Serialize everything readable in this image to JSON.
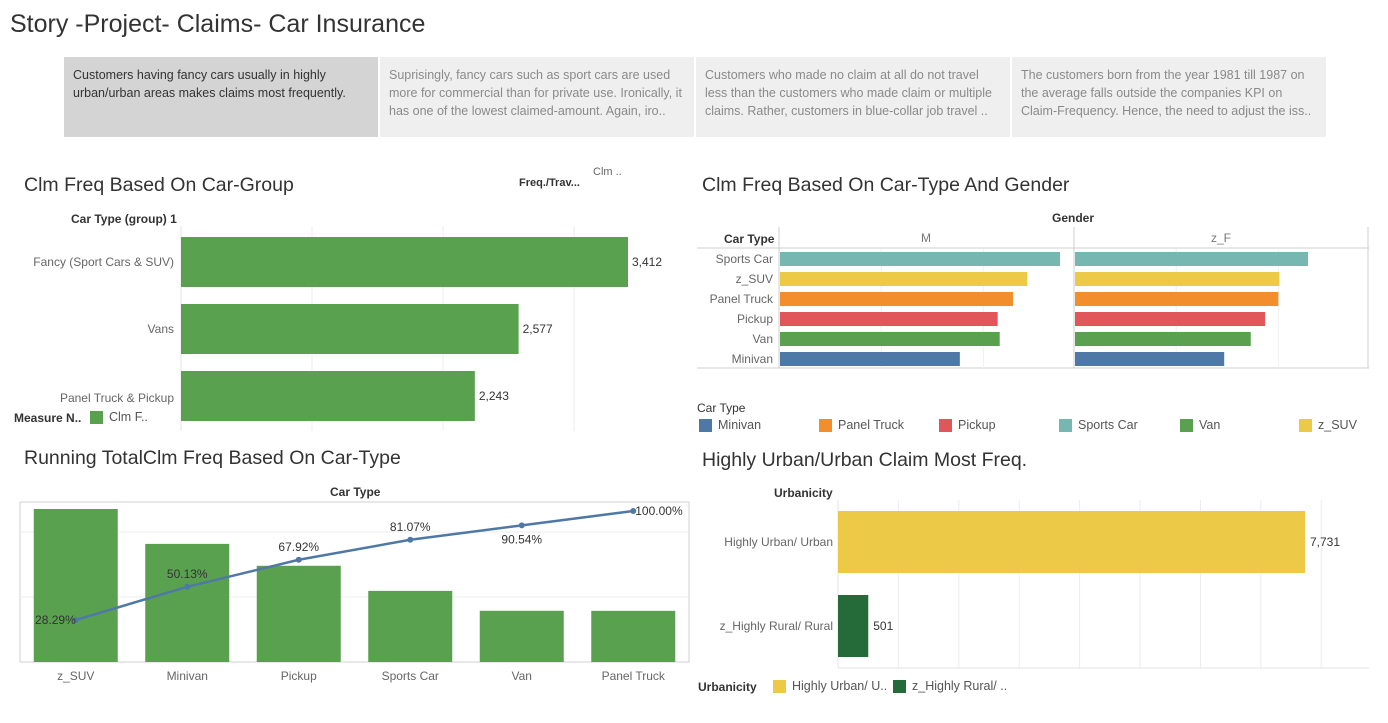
{
  "story": {
    "title": "Story -Project- Claims- Car Insurance",
    "points": [
      "Customers having fancy cars usually in highly urban/urban areas makes claims most frequently.",
      "Suprisingly, fancy cars such as sport cars are used more for commercial than for private use. Ironically, it has one of the lowest claimed-amount. Again, iro..",
      "Customers who made no claim at all do not travel less than the customers who made claim or multiple claims. Rather, customers in blue-collar job travel ..",
      "The customers born from the year 1981 till 1987 on the average falls outside the companies KPI on Claim-Frequency. Hence, the need to adjust the iss.."
    ]
  },
  "colors": {
    "green": "#59a14f",
    "blue": "#4e79a7",
    "orange": "#f28e2b",
    "red": "#e15759",
    "teal": "#76b7b2",
    "yellow": "#edc948",
    "darkgreen": "#256b3a"
  },
  "carGroup": {
    "title": "Clm Freq Based On Car-Group",
    "filterLabel1": "Freq./Trav...",
    "filterLabel2": "Clm ..",
    "rowHeader": "Car Type (group) 1",
    "legendTitle": "Measure N..",
    "legendItem": "Clm F..",
    "chart_data": {
      "type": "bar",
      "orientation": "horizontal",
      "categories": [
        "Fancy (Sport Cars & SUV)",
        "Vans",
        "Panel Truck & Pickup"
      ],
      "values": [
        3412,
        2577,
        2243
      ],
      "labels": [
        "3,412",
        "2,577",
        "2,243"
      ],
      "xlim": [
        0,
        4000
      ]
    }
  },
  "typeGender": {
    "title": "Clm Freq Based On Car-Type And Gender",
    "columnHeader": "Gender",
    "rowHeader": "Car Type",
    "panes": [
      "M",
      "z_F"
    ],
    "legendTitle": "Car Type",
    "legend": [
      "Minivan",
      "Panel Truck",
      "Pickup",
      "Sports Car",
      "Van",
      "z_SUV"
    ],
    "chart_data": {
      "type": "bar",
      "orientation": "horizontal",
      "categories": [
        "Sports Car",
        "z_SUV",
        "Panel Truck",
        "Pickup",
        "Van",
        "Minivan"
      ],
      "colorKeys": [
        "teal",
        "yellow",
        "orange",
        "red",
        "green",
        "blue"
      ],
      "series": [
        {
          "name": "M",
          "values": [
            1370,
            1210,
            1140,
            1065,
            1075,
            880
          ]
        },
        {
          "name": "z_F",
          "values": [
            1140,
            1000,
            995,
            930,
            860,
            730
          ]
        }
      ],
      "xlim": [
        0,
        1450
      ]
    }
  },
  "runningTotal": {
    "title": "Running TotalClm Freq Based On Car-Type",
    "columnHeader": "Car Type",
    "chart_data": {
      "type": "bar",
      "categories": [
        "z_SUV",
        "Minivan",
        "Pickup",
        "Sports Car",
        "Van",
        "Panel Truck"
      ],
      "values": [
        28.29,
        21.84,
        17.79,
        13.15,
        9.47,
        9.46
      ],
      "line": {
        "name": "Running Total",
        "values": [
          28.29,
          50.13,
          67.92,
          81.07,
          90.54,
          100.0
        ],
        "labels": [
          "28.29%",
          "50.13%",
          "67.92%",
          "81.07%",
          "90.54%",
          "100.00%"
        ]
      }
    }
  },
  "urbanicity": {
    "title": "Highly Urban/Urban Claim Most Freq.",
    "rowHeader": "Urbanicity",
    "legendTitle": "Urbanicity",
    "legend": [
      "Highly Urban/ U..",
      "z_Highly Rural/ .."
    ],
    "chart_data": {
      "type": "bar",
      "orientation": "horizontal",
      "categories": [
        "Highly Urban/ Urban",
        "z_Highly Rural/ Rural"
      ],
      "values": [
        7731,
        501
      ],
      "labels": [
        "7,731",
        "501"
      ],
      "xlim": [
        0,
        9000
      ]
    }
  }
}
